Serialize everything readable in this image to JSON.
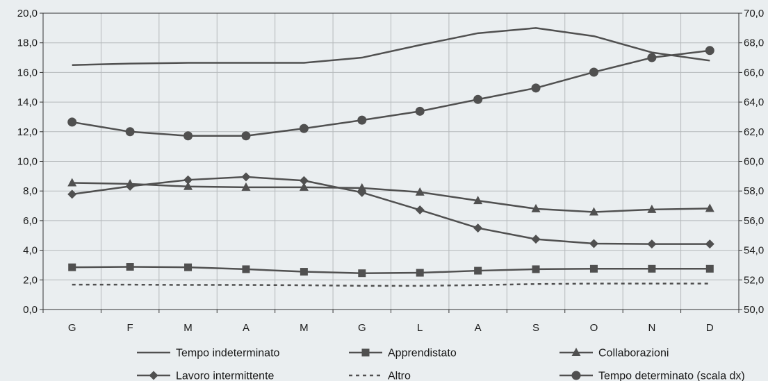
{
  "chart_data": {
    "type": "line",
    "categories": [
      "G",
      "F",
      "M",
      "A",
      "M",
      "G",
      "L",
      "A",
      "S",
      "O",
      "N",
      "D"
    ],
    "y_left": {
      "range": [
        0,
        20
      ],
      "ticks": [
        0,
        2,
        4,
        6,
        8,
        10,
        12,
        14,
        16,
        18,
        20
      ],
      "tick_labels": [
        "0,0",
        "2,0",
        "4,0",
        "6,0",
        "8,0",
        "10,0",
        "12,0",
        "14,0",
        "16,0",
        "18,0",
        "20,0"
      ]
    },
    "y_right": {
      "range": [
        50,
        70
      ],
      "ticks": [
        50,
        52,
        54,
        56,
        58,
        60,
        62,
        64,
        66,
        68,
        70
      ],
      "tick_labels": [
        "50,0",
        "52,0",
        "54,0",
        "56,0",
        "58,0",
        "60,0",
        "62,0",
        "64,0",
        "66,0",
        "68,0",
        "70,0"
      ]
    },
    "grid": true,
    "legend_position": "bottom",
    "series": [
      {
        "name": "Tempo indeterminato",
        "axis": "left",
        "marker": "none",
        "dash": false,
        "values": [
          16.5,
          16.6,
          16.65,
          16.65,
          16.65,
          17.0,
          17.85,
          18.65,
          19.0,
          18.45,
          17.35,
          16.8
        ]
      },
      {
        "name": "Apprendistato",
        "axis": "left",
        "marker": "square",
        "dash": false,
        "values": [
          2.85,
          2.88,
          2.85,
          2.72,
          2.55,
          2.45,
          2.48,
          2.62,
          2.72,
          2.75,
          2.75,
          2.75
        ]
      },
      {
        "name": "Collaborazioni",
        "axis": "left",
        "marker": "triangle",
        "dash": false,
        "values": [
          8.55,
          8.48,
          8.3,
          8.25,
          8.25,
          8.2,
          7.92,
          7.35,
          6.8,
          6.58,
          6.75,
          6.82
        ]
      },
      {
        "name": "Lavoro intermittente",
        "axis": "left",
        "marker": "diamond",
        "dash": false,
        "values": [
          7.78,
          8.32,
          8.75,
          8.95,
          8.7,
          7.9,
          6.72,
          5.5,
          4.75,
          4.45,
          4.42,
          4.42
        ]
      },
      {
        "name": "Altro",
        "axis": "left",
        "marker": "none",
        "dash": true,
        "values": [
          1.68,
          1.68,
          1.66,
          1.66,
          1.64,
          1.6,
          1.6,
          1.65,
          1.72,
          1.75,
          1.75,
          1.75
        ]
      },
      {
        "name": "Tempo determinato (scala dx)",
        "axis": "right",
        "marker": "circle",
        "dash": false,
        "values": [
          62.65,
          62.0,
          61.72,
          61.72,
          62.22,
          62.78,
          63.38,
          64.18,
          64.95,
          66.02,
          67.0,
          67.48
        ]
      }
    ],
    "colors": {
      "series": "#505050",
      "grid": "#b5b9bb",
      "background": "#eaeef0"
    }
  }
}
